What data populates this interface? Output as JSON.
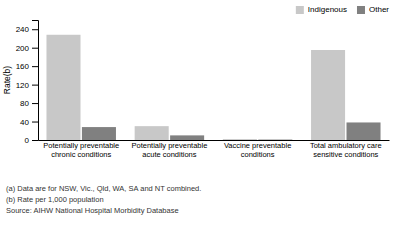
{
  "chart_data": {
    "type": "bar",
    "categories": [
      "Potentially preventable\nchronic conditions",
      "Potentially preventable\nacute conditions",
      "Vaccine preventable\nconditions",
      "Total ambulatory care\nsensitive conditions"
    ],
    "series": [
      {
        "name": "Indigenous",
        "color": "#c8c8c8",
        "values": [
          228,
          30,
          2,
          195
        ]
      },
      {
        "name": "Other",
        "color": "#808080",
        "values": [
          28,
          10,
          1,
          38
        ]
      }
    ],
    "y_label": "Rate(b)",
    "ylim": [
      0,
      260
    ],
    "yticks": [
      0,
      40,
      80,
      120,
      160,
      200,
      240
    ],
    "grid": false,
    "legend": "upper right",
    "annotations": [
      "(a) Data are for NSW, Vic., Qld, WA, SA and NT combined.",
      "(b) Rate per 1,000 population",
      "Source: AIHW National Hospital Morbidity Database"
    ]
  }
}
